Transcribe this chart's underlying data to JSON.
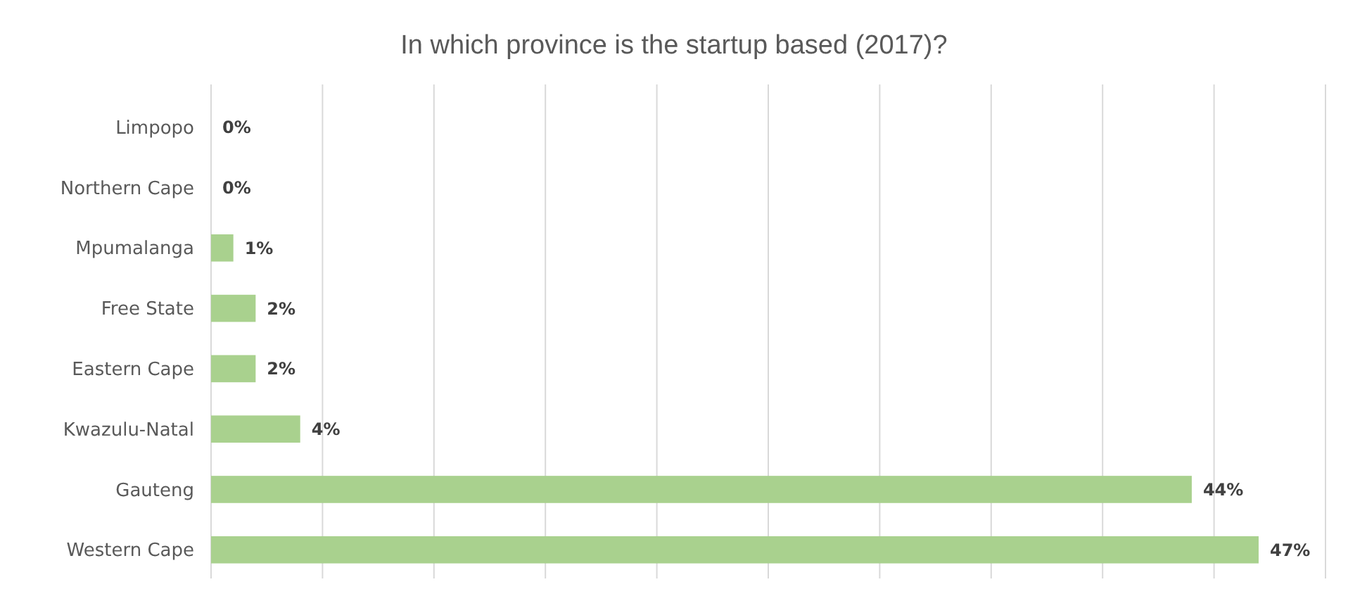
{
  "chart_data": {
    "type": "bar",
    "orientation": "horizontal",
    "title": "In which province is the startup based (2017)?",
    "categories": [
      "Limpopo",
      "Northern Cape",
      "Mpumalanga",
      "Free State",
      "Eastern Cape",
      "Kwazulu-Natal",
      "Gauteng",
      "Western Cape"
    ],
    "values": [
      0,
      0,
      1,
      2,
      2,
      4,
      44,
      47
    ],
    "color": "#a9d18e",
    "value_labels": [
      "0%",
      "0%",
      "1%",
      "2%",
      "2%",
      "4%",
      "44%",
      "47%"
    ],
    "xlim": [
      0,
      50
    ],
    "xticks": [
      {
        "value": 0,
        "label": null
      },
      {
        "value": 5,
        "label": null
      },
      {
        "value": 10,
        "label": null
      },
      {
        "value": 15,
        "label": null
      },
      {
        "value": 20,
        "label": null
      },
      {
        "value": 25,
        "label": null
      },
      {
        "value": 30,
        "label": null
      },
      {
        "value": 35,
        "label": null
      },
      {
        "value": 40,
        "label": null
      },
      {
        "value": 45,
        "label": null
      },
      {
        "value": 50,
        "label": null
      }
    ],
    "grid": "x",
    "tick_labels": "y"
  }
}
